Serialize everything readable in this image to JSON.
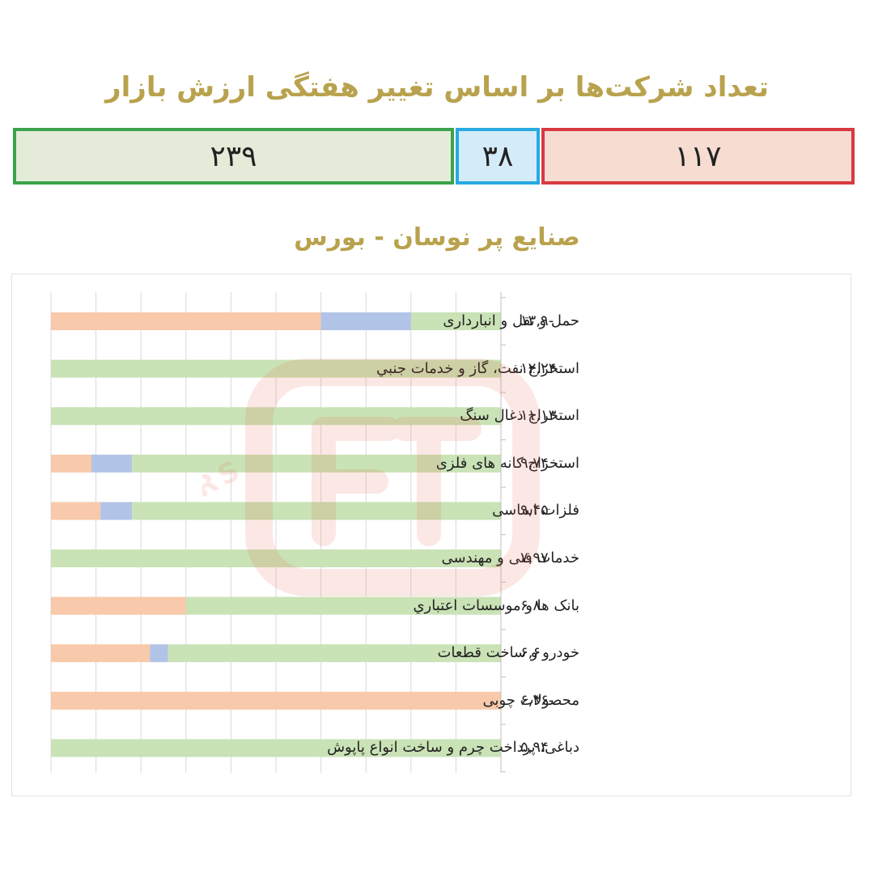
{
  "header": {
    "title": "تعداد شرکت‌ها بر اساس تغییر هفتگی ارزش بازار"
  },
  "counts": {
    "negative": "۱۱۷",
    "neutral": "۳۸",
    "positive": "۲۳۹"
  },
  "chart_title": "صنایع پر نوسان - بورس",
  "colors": {
    "title": "#b9a24e",
    "negative": "#f8c9aa",
    "neutral": "#b2c3e8",
    "positive": "#c9e2b6",
    "negative_border": "#d83a3f",
    "neutral_border": "#27a9e1",
    "positive_border": "#3ba34a"
  },
  "chart_data": {
    "type": "bar",
    "orientation": "horizontal-stacked-100%",
    "categories": [
      "حمل و نقل و انبارداری",
      "استخراج نفت، گاز و خدمات جنبي",
      "استخراج ذغال سنگ",
      "استخراج کانه های فلزی",
      "فلزات اساسی",
      "خدمات فنی و مهندسی",
      "بانک ها و موسسات اعتباري",
      "خودرو و ساخت قطعات",
      "محصولات چوبی",
      "دباغی، پرداخت چرم و ساخت انواع پاپوش"
    ],
    "value_labels": [
      "۱۳,۹-",
      "۱۲,۲۴",
      "۱۱,۱۳",
      "۹,۷۴",
      "۹,۴۵",
      "۷,۹۷",
      "۶,۸",
      "۶,۶",
      "۶,۳۶-",
      "۵,۹۴"
    ],
    "series": [
      {
        "name": "negative",
        "values": [
          60,
          0,
          0,
          9,
          11,
          0,
          30,
          22,
          100,
          0
        ]
      },
      {
        "name": "neutral",
        "values": [
          20,
          0,
          0,
          9,
          7,
          0,
          0,
          4,
          0,
          0
        ]
      },
      {
        "name": "positive",
        "values": [
          20,
          100,
          100,
          82,
          82,
          100,
          70,
          74,
          0,
          100
        ]
      }
    ],
    "xlim": [
      0,
      100
    ],
    "grid": true,
    "watermark": "SEDAYE BOURS"
  }
}
